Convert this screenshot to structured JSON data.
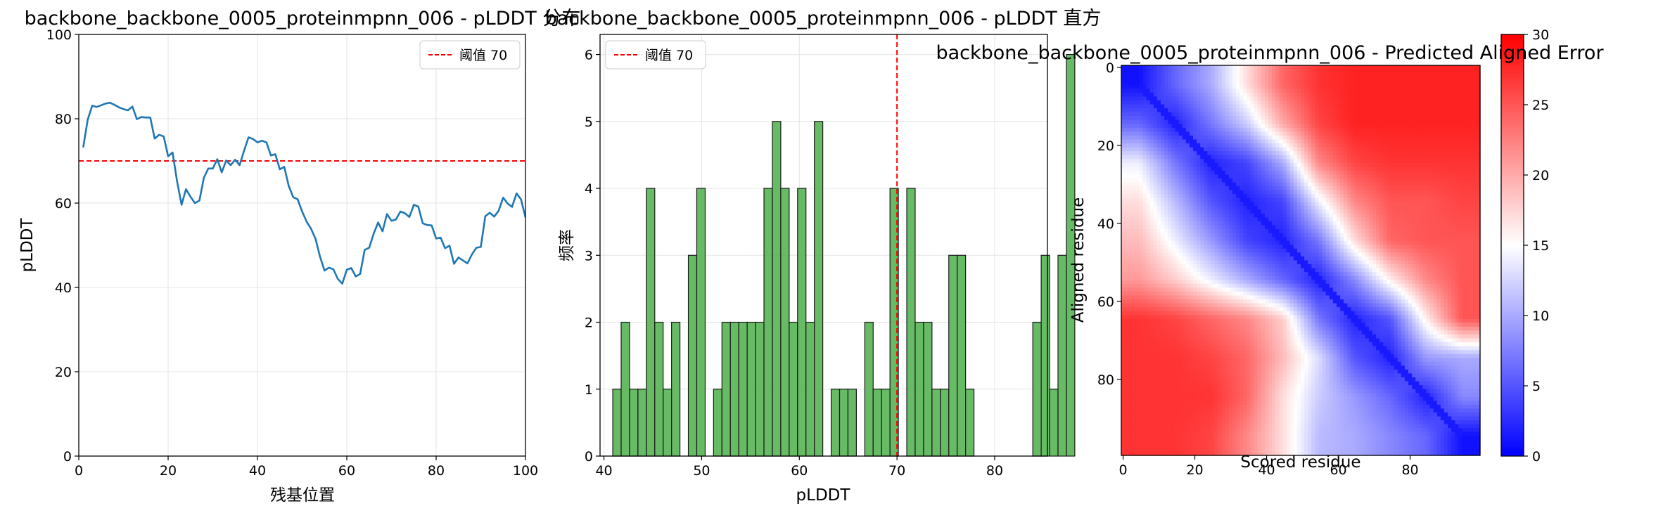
{
  "chart_data": [
    {
      "type": "line",
      "title": "backbone_backbone_0005_proteinmpnn_006 - pLDDT 分布",
      "xlabel": "残基位置",
      "ylabel": "pLDDT",
      "xlim": [
        0,
        100
      ],
      "ylim": [
        0,
        100
      ],
      "xticks": [
        "0",
        "20",
        "40",
        "60",
        "80",
        "100"
      ],
      "yticks": [
        "0",
        "20",
        "40",
        "60",
        "80",
        "100"
      ],
      "grid": true,
      "legend_position": "top-right",
      "series": [
        {
          "color": "#1f77b4",
          "x": [
            1,
            2,
            3,
            4,
            5,
            6,
            7,
            8,
            9,
            10,
            11,
            12,
            13,
            14,
            15,
            16,
            17,
            18,
            19,
            20,
            21,
            22,
            23,
            24,
            25,
            26,
            27,
            28,
            29,
            30,
            31,
            32,
            33,
            34,
            35,
            36,
            37,
            38,
            39,
            40,
            41,
            42,
            43,
            44,
            45,
            46,
            47,
            48,
            49,
            50,
            51,
            52,
            53,
            54,
            55,
            56,
            57,
            58,
            59,
            60,
            61,
            62,
            63,
            64,
            65,
            66,
            67,
            68,
            69,
            70,
            71,
            72,
            73,
            74,
            75,
            76,
            77,
            78,
            79,
            80,
            81,
            82,
            83,
            84,
            85,
            86,
            87,
            88,
            89,
            90,
            91,
            92,
            93,
            94,
            95,
            96,
            97,
            98,
            99,
            100
          ],
          "values": [
            73.2,
            79.8,
            83.1,
            82.8,
            83.2,
            83.6,
            83.8,
            83.3,
            82.7,
            82.3,
            82.0,
            82.9,
            79.9,
            80.4,
            80.3,
            80.3,
            75.3,
            76.2,
            75.8,
            71.1,
            72.0,
            65.2,
            59.6,
            63.3,
            61.5,
            60.0,
            60.6,
            66.0,
            68.2,
            68.2,
            70.4,
            67.3,
            70.1,
            69.0,
            70.3,
            69.0,
            72.4,
            75.6,
            75.2,
            74.4,
            74.8,
            74.4,
            71.3,
            71.6,
            68.0,
            68.6,
            64.1,
            61.4,
            60.9,
            58.0,
            55.6,
            53.9,
            51.5,
            47.3,
            44.0,
            44.7,
            44.3,
            42.0,
            40.9,
            44.2,
            44.6,
            42.6,
            43.2,
            48.9,
            49.4,
            52.7,
            55.4,
            53.3,
            57.4,
            55.8,
            56.1,
            58.0,
            57.6,
            56.7,
            59.6,
            59.2,
            55.2,
            54.8,
            54.7,
            51.6,
            51.8,
            49.3,
            49.9,
            45.6,
            47.1,
            46.4,
            45.7,
            47.8,
            49.4,
            49.6,
            56.9,
            57.7,
            56.8,
            58.2,
            61.3,
            59.9,
            59.1,
            62.3,
            60.9,
            56.6
          ]
        }
      ],
      "threshold": {
        "value": 70,
        "label": "阈值 70",
        "color": "#ff0000"
      }
    },
    {
      "type": "bar",
      "title": "backbone_backbone_0005_proteinmpnn_006 - pLDDT 直方",
      "xlabel": "pLDDT",
      "ylabel": "频率",
      "xlim": [
        39.6,
        85.4
      ],
      "ylim": [
        0,
        6.3
      ],
      "xticks": [
        "40",
        "50",
        "60",
        "70",
        "80"
      ],
      "yticks": [
        "0",
        "1",
        "2",
        "3",
        "4",
        "5",
        "6"
      ],
      "grid": true,
      "legend_position": "top-left",
      "bar_color": "#4daf4a",
      "bin_start": 40.9,
      "bin_width": 0.86,
      "values": [
        1,
        2,
        1,
        1,
        4,
        2,
        1,
        2,
        0,
        3,
        4,
        0,
        1,
        2,
        2,
        2,
        2,
        2,
        4,
        5,
        4,
        2,
        4,
        2,
        5,
        0,
        1,
        1,
        1,
        0,
        2,
        1,
        1,
        4,
        0,
        4,
        2,
        2,
        1,
        1,
        3,
        3,
        1,
        0,
        0,
        0,
        0,
        0,
        0,
        0,
        2,
        3,
        1,
        3,
        6
      ],
      "threshold": {
        "value": 70,
        "label": "阈值 70",
        "color": "#ff0000"
      }
    },
    {
      "type": "heatmap",
      "title": "backbone_backbone_0005_proteinmpnn_006 - Predicted Aligned Error",
      "xlabel": "Scored residue",
      "ylabel": "Aligned residue",
      "xticks": [
        "0",
        "20",
        "40",
        "60",
        "80"
      ],
      "yticks": [
        "0",
        "20",
        "40",
        "60",
        "80"
      ],
      "n_residues": 100,
      "colormap": "bwr",
      "colorbar": {
        "min": 0,
        "max": 30,
        "ticks": [
          "0",
          "5",
          "10",
          "15",
          "20",
          "25",
          "30"
        ]
      },
      "colors": {
        "low": "#0000ff",
        "mid": "#ffffff",
        "high": "#ff0000"
      },
      "approx_cells_row_by_row_every_10_residues": [
        [
          1,
          6,
          10,
          17,
          24,
          27,
          28,
          28,
          28,
          28
        ],
        [
          6,
          2,
          7,
          12,
          20,
          26,
          28,
          28,
          28,
          28
        ],
        [
          14,
          7,
          2,
          4,
          10,
          22,
          26,
          27,
          27,
          27
        ],
        [
          17,
          11,
          5,
          2,
          4,
          14,
          22,
          25,
          25,
          26
        ],
        [
          19,
          14,
          9,
          4,
          2,
          7,
          17,
          24,
          25,
          25
        ],
        [
          21,
          18,
          14,
          10,
          6,
          2,
          8,
          16,
          22,
          25
        ],
        [
          27,
          26,
          24,
          22,
          18,
          7,
          2,
          5,
          16,
          25
        ],
        [
          27,
          27,
          26,
          24,
          19,
          13,
          5,
          2,
          9,
          10
        ],
        [
          27,
          27,
          27,
          24,
          17,
          12,
          9,
          6,
          2,
          8
        ],
        [
          27,
          27,
          26,
          22,
          17,
          11,
          10,
          8,
          6,
          1
        ]
      ]
    }
  ]
}
